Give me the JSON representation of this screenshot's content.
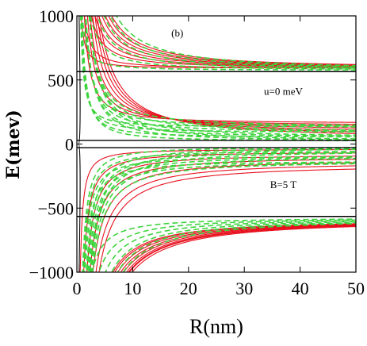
{
  "chart_data": {
    "type": "line",
    "title": "",
    "xlabel": "R(nm)",
    "ylabel": "E(mev)",
    "xlim": [
      0,
      50
    ],
    "ylim": [
      -1000,
      1000
    ],
    "x_ticks": [
      0,
      10,
      20,
      30,
      40,
      50
    ],
    "y_ticks": [
      -1000,
      -500,
      0,
      500,
      1000
    ],
    "x_tick_labels": [
      "0",
      "10",
      "20",
      "30",
      "40",
      "50"
    ],
    "y_tick_labels": [
      "−1000",
      "−500",
      "0",
      "500",
      "1000"
    ],
    "annotations": [
      {
        "text": "(b)",
        "x": 18,
        "y": 840
      },
      {
        "text": "u=0 meV",
        "x": 37,
        "y": 385
      },
      {
        "text": "B=5 T",
        "x": 37,
        "y": -345
      }
    ],
    "colors": {
      "red": "#e8101e",
      "green": "#3fd43f",
      "black": "#000000"
    },
    "series": [
      {
        "style": "solid",
        "color": "#000000",
        "values_at_x50": [
          565,
          28,
          -28,
          -565
        ],
        "asymptote": true
      },
      {
        "style": "solid",
        "color": "#e8101e",
        "asymptotes": [
          590,
          160,
          140,
          120,
          100,
          80,
          60,
          40,
          -40,
          -60,
          -80,
          -100,
          -120,
          -140,
          -160,
          -590
        ]
      },
      {
        "style": "dashed",
        "color": "#3fd43f",
        "asymptotes": [
          575,
          130,
          90,
          50,
          20,
          -20,
          -50,
          -90,
          -130,
          -575
        ]
      }
    ]
  }
}
